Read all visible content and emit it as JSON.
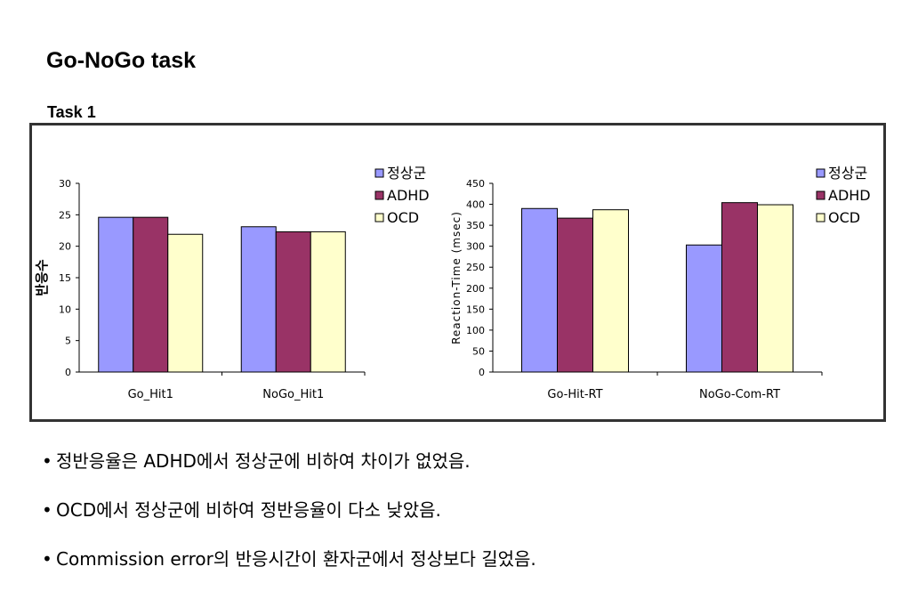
{
  "page": {
    "title": "Go-NoGo task",
    "section": "Task 1"
  },
  "chart_data": [
    {
      "type": "bar",
      "ylabel": "반응수",
      "xlabel": "",
      "ylim": [
        0,
        30
      ],
      "yticks": [
        0,
        5,
        10,
        15,
        20,
        25,
        30
      ],
      "categories": [
        "Go_Hit1",
        "NoGo_Hit1"
      ],
      "series": [
        {
          "name": "정상군",
          "color": "#9999ff",
          "values": [
            24.6,
            23.1
          ]
        },
        {
          "name": "ADHD",
          "color": "#993366",
          "values": [
            24.6,
            22.3
          ]
        },
        {
          "name": "OCD",
          "color": "#ffffcc",
          "values": [
            21.9,
            22.3
          ]
        }
      ],
      "legend": "top-right",
      "grid": false
    },
    {
      "type": "bar",
      "ylabel": "Reaction-Time (msec)",
      "xlabel": "",
      "ylim": [
        0,
        450
      ],
      "yticks": [
        0,
        50,
        100,
        150,
        200,
        250,
        300,
        350,
        400,
        450
      ],
      "categories": [
        "Go-Hit-RT",
        "NoGo-Com-RT"
      ],
      "series": [
        {
          "name": "정상군",
          "color": "#9999ff",
          "values": [
            390,
            303
          ]
        },
        {
          "name": "ADHD",
          "color": "#993366",
          "values": [
            367,
            404
          ]
        },
        {
          "name": "OCD",
          "color": "#ffffcc",
          "values": [
            387,
            399
          ]
        }
      ],
      "legend": "top-right",
      "grid": false
    }
  ],
  "bullets": [
    {
      "dot": "•",
      "text": "정반응율은 ADHD에서 정상군에 비하여  차이가 없었음."
    },
    {
      "dot": "•",
      "text": "OCD에서 정상군에 비하여 정반응율이 다소 낮았음."
    },
    {
      "dot": "•",
      "text": "Commission error의 반응시간이 환자군에서 정상보다 길었음."
    }
  ]
}
